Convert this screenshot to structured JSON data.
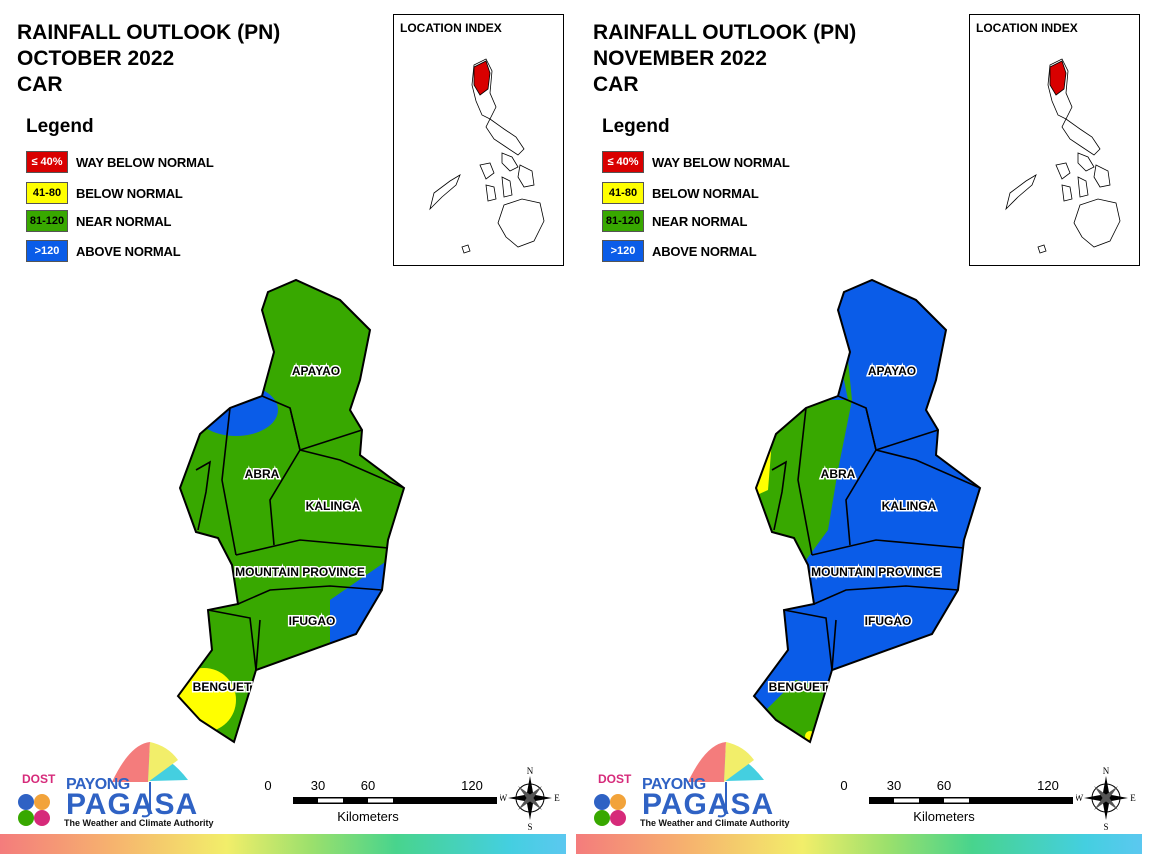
{
  "panels": [
    {
      "title_lines": [
        "RAINFALL OUTLOOK (PN)",
        "OCTOBER 2022",
        "CAR"
      ],
      "legend_title": "Legend",
      "legend": [
        {
          "code": "≤ 40%",
          "label": "WAY BELOW NORMAL",
          "color": "#d90000",
          "text_color": "#ffffff"
        },
        {
          "code": "41-80",
          "label": "BELOW NORMAL",
          "color": "#ffff00",
          "text_color": "#000000"
        },
        {
          "code": "81-120",
          "label": "NEAR NORMAL",
          "color": "#38a800",
          "text_color": "#000000"
        },
        {
          "code": ">120",
          "label": "ABOVE NORMAL",
          "color": "#0a5ce8",
          "text_color": "#ffffff"
        }
      ],
      "inset_title": "LOCATION INDEX",
      "provinces": [
        "APAYAO",
        "ABRA",
        "KALINGA",
        "MOUNTAIN PROVINCE",
        "IFUGAO",
        "BENGUET"
      ],
      "scale": {
        "ticks": [
          "0",
          "30",
          "60",
          "120"
        ],
        "unit": "Kilometers"
      },
      "compass": {
        "n": "N",
        "s": "S",
        "e": "E",
        "w": "W"
      },
      "logo": {
        "dost": "DOST",
        "payong": "PAYONG",
        "pagasa": "PAGASA",
        "tagline": "The Weather and Climate Authority"
      }
    },
    {
      "title_lines": [
        "RAINFALL OUTLOOK (PN)",
        "NOVEMBER 2022",
        "CAR"
      ],
      "legend_title": "Legend",
      "legend": [
        {
          "code": "≤ 40%",
          "label": "WAY BELOW NORMAL",
          "color": "#d90000",
          "text_color": "#ffffff"
        },
        {
          "code": "41-80",
          "label": "BELOW NORMAL",
          "color": "#ffff00",
          "text_color": "#000000"
        },
        {
          "code": "81-120",
          "label": "NEAR NORMAL",
          "color": "#38a800",
          "text_color": "#000000"
        },
        {
          "code": ">120",
          "label": "ABOVE NORMAL",
          "color": "#0a5ce8",
          "text_color": "#ffffff"
        }
      ],
      "inset_title": "LOCATION INDEX",
      "provinces": [
        "APAYAO",
        "ABRA",
        "KALINGA",
        "MOUNTAIN PROVINCE",
        "IFUGAO",
        "BENGUET"
      ],
      "scale": {
        "ticks": [
          "0",
          "30",
          "60",
          "120"
        ],
        "unit": "Kilometers"
      },
      "compass": {
        "n": "N",
        "s": "S",
        "e": "E",
        "w": "W"
      },
      "logo": {
        "dost": "DOST",
        "payong": "PAYONG",
        "pagasa": "PAGASA",
        "tagline": "The Weather and Climate Authority"
      }
    }
  ]
}
